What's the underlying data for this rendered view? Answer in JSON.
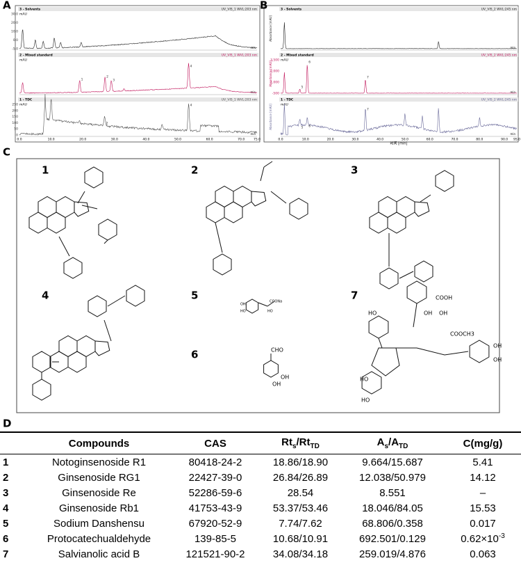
{
  "figure": {
    "panels": [
      "A",
      "B",
      "C",
      "D"
    ],
    "chrom_a": {
      "plots": [
        {
          "name": "3 - Solvents",
          "detector": "UV_VIS_1 WVL:203 nm",
          "unit": "mAU",
          "yticks": [
            "30.0",
            "20.0",
            "10.0",
            "0.0",
            "-5.0"
          ],
          "peaks": []
        },
        {
          "name": "2 - Mixed standard",
          "detector": "UV_VIS_1 WVL:203 nm",
          "unit": "mAU",
          "yticks": [],
          "peaks": [
            "1",
            "2",
            "3",
            "4"
          ]
        },
        {
          "name": "1 - TDC",
          "detector": "UV_VIS_1 WVL:203 nm",
          "unit": "mAU",
          "yticks": [
            "250",
            "200",
            "150",
            "100",
            "50",
            "0"
          ],
          "peaks": [
            "2",
            "4"
          ]
        }
      ],
      "xticks": [
        "0.0",
        "10.0",
        "20.0",
        "30.0",
        "40.0",
        "50.0",
        "60.0",
        "70.0",
        "75.0"
      ],
      "xunit": "min"
    },
    "chrom_b": {
      "plots": [
        {
          "name": "3 - Solvents",
          "detector": "UV_VIS_2 WVL:245 nm",
          "ylabel": "Absorbance [mAU]",
          "yticks": [],
          "peaks": []
        },
        {
          "name": "2 - Mixed standard",
          "detector": "UV_VIS_2 WVL:245 nm",
          "ylabel": "Absorbance [mAU]",
          "unit": "mAU",
          "yticks": [
            "3,500",
            "2,000",
            "1,000",
            "-500"
          ],
          "peaks": [
            "5",
            "6",
            "7"
          ]
        },
        {
          "name": "1 - TDC",
          "detector": "UV_VIS_2 WVL:245 nm",
          "ylabel": "Absorbance [mAU]",
          "unit": "mAU",
          "yticks": [],
          "peaks": [
            "5",
            "6",
            "7"
          ]
        }
      ],
      "xticks": [
        "0.0",
        "10.0",
        "20.0",
        "30.0",
        "40.0",
        "50.0",
        "60.0",
        "70.0",
        "80.0",
        "90.0",
        "95.0"
      ],
      "xunit": "min",
      "xlabel": "时间 [min]"
    },
    "structures": [
      {
        "number": "1"
      },
      {
        "number": "2"
      },
      {
        "number": "3"
      },
      {
        "number": "4"
      },
      {
        "number": "5",
        "labels": [
          "COONa",
          "OH",
          "HO",
          "HO"
        ]
      },
      {
        "number": "6",
        "labels": [
          "CHO",
          "OH",
          "OH"
        ]
      },
      {
        "number": "7",
        "labels": [
          "OH",
          "OH",
          "HO",
          "HO",
          "COOH",
          "COOCH3",
          "OH",
          "OH",
          "HO"
        ]
      }
    ],
    "table": {
      "header": [
        [
          "Compounds"
        ],
        [
          "CAS"
        ],
        [
          "Rt",
          "s",
          "/Rt",
          "TD"
        ],
        [
          "A",
          "s",
          "/A",
          "TD"
        ],
        [
          "C(mg/g)"
        ]
      ],
      "rows": [
        [
          "1",
          "Notoginsenoside R1",
          "80418-24-2",
          "18.86/18.90",
          "9.664/15.687",
          "5.41"
        ],
        [
          "2",
          "Ginsenoside RG1",
          "22427-39-0",
          "26.84/26.89",
          "12.038/50.979",
          "14.12"
        ],
        [
          "3",
          "Ginsenoside Re",
          "52286-59-6",
          "28.54",
          "8.551",
          "–"
        ],
        [
          "4",
          "Ginsenoside Rb1",
          "41753-43-9",
          "53.37/53.46",
          "18.046/84.05",
          "15.53"
        ],
        [
          "5",
          "Sodium Danshensu",
          "67920-52-9",
          "7.74/7.62",
          "68.806/0.358",
          "0.017"
        ],
        [
          "6",
          "Protocatechualdehyde",
          "139-85-5",
          "10.68/10.91",
          "692.501/0.129",
          {
            "base": "0.62×10",
            "sup": "-3"
          }
        ],
        [
          "7",
          "Salvianolic acid B",
          "121521-90-2",
          "34.08/34.18",
          "259.019/4.876",
          "0.063"
        ]
      ]
    }
  }
}
